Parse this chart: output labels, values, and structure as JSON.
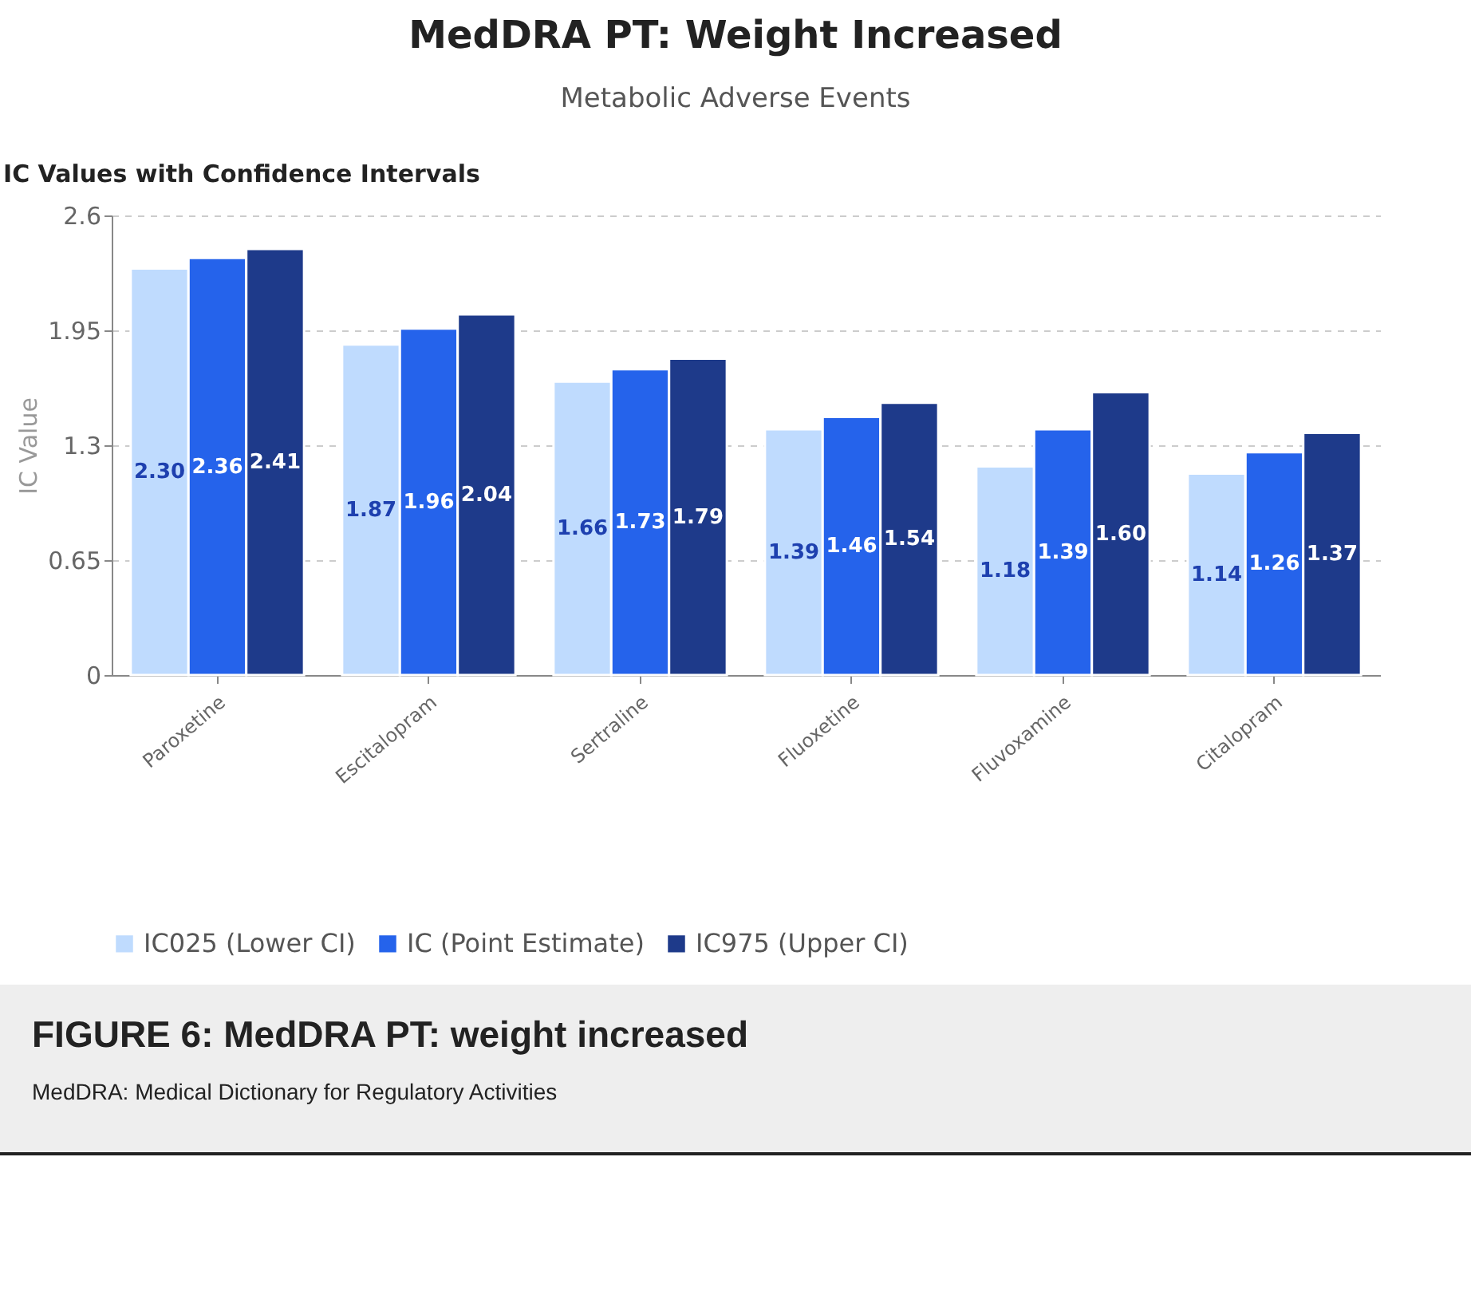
{
  "chart_data": {
    "type": "bar",
    "title": "MedDRA PT: Weight Increased",
    "subtitle": "Metabolic Adverse Events",
    "annotations": [
      "IC Values with Confidence Intervals",
      "FIGURE 6: MedDRA PT: weight increased",
      "MedDRA: Medical Dictionary for Regulatory Activities"
    ],
    "ylabel": "IC Value",
    "categories": [
      "Paroxetine",
      "Escitalopram",
      "Sertraline",
      "Fluoxetine",
      "Fluvoxamine",
      "Citalopram"
    ],
    "series": [
      {
        "name": "IC025 (Lower CI)",
        "color": "#bfdbfe",
        "values": [
          2.3,
          1.87,
          1.66,
          1.39,
          1.18,
          1.14
        ],
        "value_labels": [
          "2.30",
          "1.87",
          "1.66",
          "1.39",
          "1.18",
          "1.14"
        ]
      },
      {
        "name": "IC (Point Estimate)",
        "color": "#2563eb",
        "values": [
          2.36,
          1.96,
          1.73,
          1.46,
          1.39,
          1.26
        ],
        "value_labels": [
          "2.36",
          "1.96",
          "1.73",
          "1.46",
          "1.39",
          "1.26"
        ]
      },
      {
        "name": "IC975 (Upper CI)",
        "color": "#1e3a8a",
        "values": [
          2.41,
          2.04,
          1.79,
          1.54,
          1.6,
          1.37
        ],
        "value_labels": [
          "2.41",
          "2.04",
          "1.79",
          "1.54",
          "1.60",
          "1.37"
        ]
      }
    ],
    "ylim": [
      0,
      2.6
    ],
    "yticks": [
      0,
      0.65,
      1.3,
      1.95,
      2.6
    ],
    "grid": "y",
    "legend": "bottom"
  }
}
